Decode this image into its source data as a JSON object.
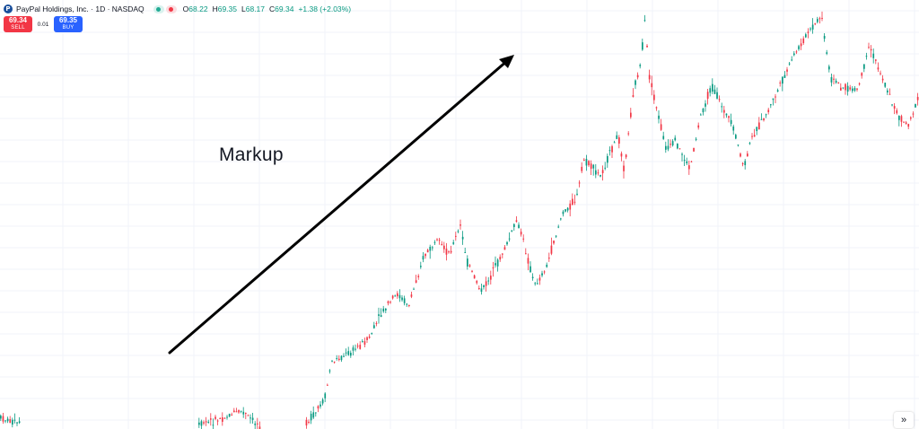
{
  "legend": {
    "symbol_logo": "P",
    "symbol_title": "PayPal Holdings, Inc. · 1D · NASDAQ",
    "ohlc": {
      "o_label": "O",
      "o_value": "68.22",
      "h_label": "H",
      "h_value": "69.35",
      "l_label": "L",
      "l_value": "68.17",
      "c_label": "C",
      "c_value": "69.34",
      "change": "+1.38 (+2.03%)"
    }
  },
  "trade": {
    "sell_price": "69.34",
    "sell_label": "SELL",
    "spread": "0.01",
    "buy_price": "69.35",
    "buy_label": "BUY"
  },
  "annotation": {
    "text": "Markup"
  },
  "controls": {
    "scroll_icon": "»"
  },
  "colors": {
    "up": "#089981",
    "down": "#f23645",
    "grid": "#f0f3fa",
    "arrow": "#000000"
  },
  "chart_data": {
    "type": "candlestick",
    "series_trend": "uptrend with pullbacks"
  }
}
